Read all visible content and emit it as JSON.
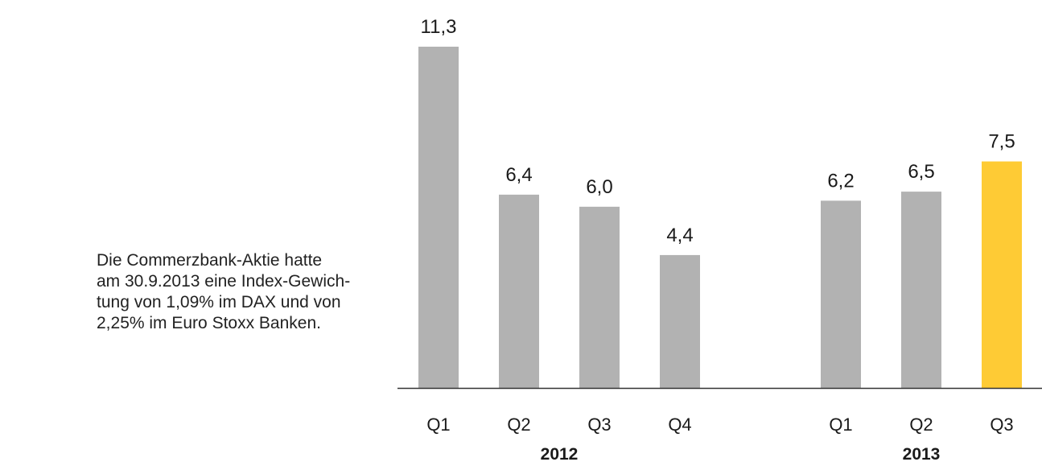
{
  "note": {
    "lines": [
      "Die Commerzbank-Aktie hatte",
      "am 30.9.2013 eine Index-Gewich-",
      "tung von 1,09% im DAX und von",
      "2,25% im Euro Stoxx Banken."
    ]
  },
  "colors": {
    "bar": "#b2b2b2",
    "highlight": "#fecb35",
    "axis": "#333333",
    "text": "#1a1a1a"
  },
  "chart_data": {
    "type": "bar",
    "title": "",
    "xlabel": "",
    "ylabel": "",
    "ylim": [
      0,
      11.3
    ],
    "grid": false,
    "legend": "none",
    "groups": [
      {
        "label": "2012",
        "bars": [
          {
            "category": "Q1",
            "value": 11.3,
            "label": "11,3",
            "highlight": false
          },
          {
            "category": "Q2",
            "value": 6.4,
            "label": "6,4",
            "highlight": false
          },
          {
            "category": "Q3",
            "value": 6.0,
            "label": "6,0",
            "highlight": false
          },
          {
            "category": "Q4",
            "value": 4.4,
            "label": "4,4",
            "highlight": false
          }
        ]
      },
      {
        "label": "2013",
        "bars": [
          {
            "category": "Q1",
            "value": 6.2,
            "label": "6,2",
            "highlight": false
          },
          {
            "category": "Q2",
            "value": 6.5,
            "label": "6,5",
            "highlight": false
          },
          {
            "category": "Q3",
            "value": 7.5,
            "label": "7,5",
            "highlight": true
          }
        ]
      }
    ]
  }
}
